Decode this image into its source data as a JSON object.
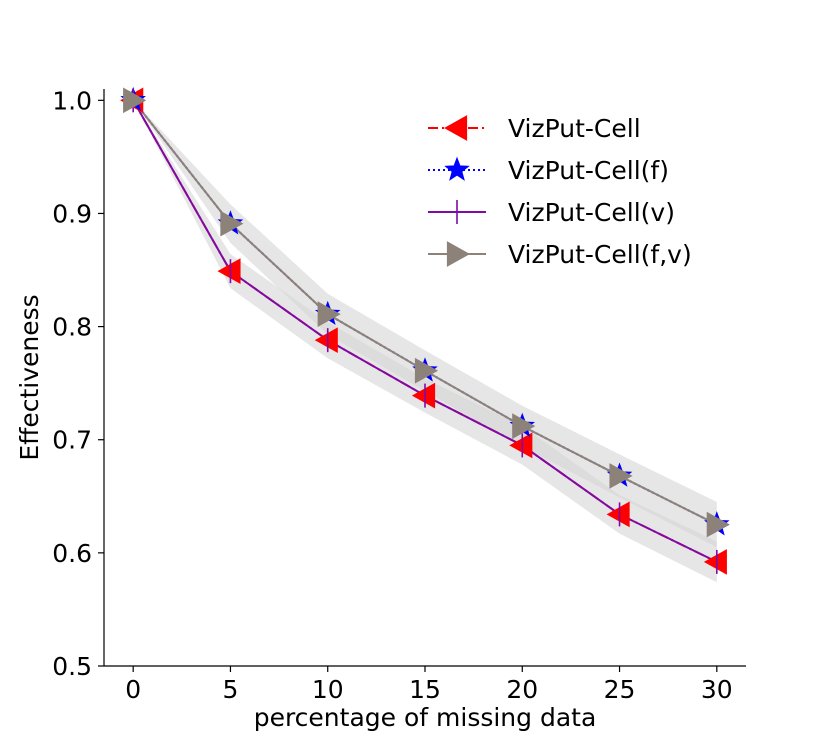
{
  "chart_data": {
    "type": "line",
    "title": "",
    "xlabel": "percentage of missing data",
    "ylabel": "Effectiveness",
    "xlim": [
      -1.5,
      31.5
    ],
    "ylim": [
      0.5,
      1.01
    ],
    "x": [
      0,
      5,
      10,
      15,
      20,
      25,
      30
    ],
    "xticks": [
      0,
      5,
      10,
      15,
      20,
      25,
      30
    ],
    "xtick_labels": [
      "0",
      "5",
      "10",
      "15",
      "20",
      "25",
      "30"
    ],
    "yticks": [
      0.5,
      0.6,
      0.7,
      0.8,
      0.9,
      1.0
    ],
    "ytick_labels": [
      "0.5",
      "0.6",
      "0.7",
      "0.8",
      "0.9",
      "1.0"
    ],
    "legend_position": "top-right",
    "series": [
      {
        "name": "VizPut-Cell",
        "values": [
          1.0,
          0.849,
          0.788,
          0.739,
          0.695,
          0.634,
          0.592
        ],
        "band_lower": [
          1.0,
          0.834,
          0.772,
          0.724,
          0.678,
          0.617,
          0.574
        ],
        "band_upper": [
          1.0,
          0.864,
          0.804,
          0.754,
          0.712,
          0.651,
          0.61
        ],
        "color": "#ff0000",
        "line_style": "dashdot",
        "marker": "triangle-left"
      },
      {
        "name": "VizPut-Cell(f)",
        "values": [
          1.0,
          0.891,
          0.811,
          0.761,
          0.712,
          0.668,
          0.625
        ],
        "band_lower": [
          1.0,
          0.874,
          0.793,
          0.743,
          0.694,
          0.649,
          0.605
        ],
        "band_upper": [
          1.0,
          0.908,
          0.829,
          0.779,
          0.73,
          0.687,
          0.645
        ],
        "color": "#0000ff",
        "line_style": "dotted",
        "marker": "star"
      },
      {
        "name": "VizPut-Cell(v)",
        "values": [
          1.0,
          0.849,
          0.788,
          0.739,
          0.695,
          0.634,
          0.592
        ],
        "band_lower": [
          1.0,
          0.834,
          0.772,
          0.724,
          0.678,
          0.617,
          0.574
        ],
        "band_upper": [
          1.0,
          0.864,
          0.804,
          0.754,
          0.712,
          0.651,
          0.61
        ],
        "color": "#7f0aa5",
        "line_style": "solid",
        "marker": "vline"
      },
      {
        "name": "VizPut-Cell(f,v)",
        "values": [
          1.0,
          0.891,
          0.811,
          0.761,
          0.712,
          0.668,
          0.625
        ],
        "band_lower": [
          1.0,
          0.874,
          0.793,
          0.743,
          0.694,
          0.649,
          0.605
        ],
        "band_upper": [
          1.0,
          0.908,
          0.829,
          0.779,
          0.73,
          0.687,
          0.645
        ],
        "color": "#8c8279",
        "line_style": "solid",
        "marker": "triangle-right"
      }
    ],
    "band_color": "#d3d3d3"
  }
}
